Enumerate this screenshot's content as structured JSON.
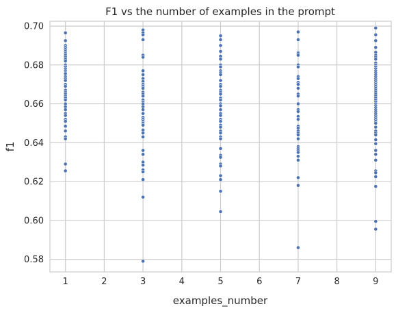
{
  "chart_data": {
    "type": "scatter",
    "title": "F1 vs the number of examples in the prompt",
    "xlabel": "examples_number",
    "ylabel": "f1",
    "xlim": [
      0.6,
      9.4
    ],
    "ylim": [
      0.5735,
      0.7025
    ],
    "xticks": [
      1,
      2,
      3,
      4,
      5,
      6,
      7,
      8,
      9
    ],
    "yticks": [
      0.58,
      0.6,
      0.62,
      0.64,
      0.66,
      0.68,
      0.7
    ],
    "ytick_labels": [
      "0.58",
      "0.60",
      "0.62",
      "0.64",
      "0.66",
      "0.68",
      "0.70"
    ],
    "grid": true,
    "color": "#4c72b0",
    "series": [
      {
        "x": 1,
        "values": [
          0.6965,
          0.6925,
          0.69,
          0.689,
          0.688,
          0.687,
          0.686,
          0.685,
          0.684,
          0.683,
          0.682,
          0.68,
          0.679,
          0.678,
          0.677,
          0.676,
          0.6755,
          0.674,
          0.673,
          0.672,
          0.67,
          0.669,
          0.667,
          0.666,
          0.665,
          0.664,
          0.663,
          0.662,
          0.66,
          0.6585,
          0.657,
          0.655,
          0.654,
          0.652,
          0.651,
          0.6485,
          0.646,
          0.643,
          0.642,
          0.629,
          0.6255
        ]
      },
      {
        "x": 3,
        "values": [
          0.698,
          0.6965,
          0.6955,
          0.693,
          0.685,
          0.684,
          0.677,
          0.675,
          0.673,
          0.6715,
          0.67,
          0.669,
          0.668,
          0.666,
          0.665,
          0.664,
          0.662,
          0.661,
          0.66,
          0.6585,
          0.657,
          0.655,
          0.653,
          0.652,
          0.651,
          0.65,
          0.649,
          0.6465,
          0.645,
          0.643,
          0.636,
          0.634,
          0.63,
          0.6285,
          0.626,
          0.625,
          0.621,
          0.612,
          0.579
        ]
      },
      {
        "x": 5,
        "values": [
          0.695,
          0.693,
          0.69,
          0.687,
          0.6845,
          0.683,
          0.68,
          0.679,
          0.677,
          0.676,
          0.675,
          0.672,
          0.67,
          0.669,
          0.667,
          0.666,
          0.665,
          0.663,
          0.662,
          0.66,
          0.659,
          0.657,
          0.655,
          0.654,
          0.652,
          0.651,
          0.649,
          0.648,
          0.646,
          0.645,
          0.643,
          0.642,
          0.637,
          0.6335,
          0.6325,
          0.629,
          0.628,
          0.623,
          0.621,
          0.615,
          0.6045
        ]
      },
      {
        "x": 7,
        "values": [
          0.697,
          0.693,
          0.6865,
          0.686,
          0.685,
          0.68,
          0.679,
          0.674,
          0.673,
          0.671,
          0.67,
          0.668,
          0.665,
          0.664,
          0.66,
          0.657,
          0.656,
          0.6535,
          0.652,
          0.6485,
          0.6475,
          0.646,
          0.645,
          0.644,
          0.642,
          0.638,
          0.637,
          0.636,
          0.635,
          0.633,
          0.631,
          0.622,
          0.618,
          0.586
        ]
      },
      {
        "x": 9,
        "values": [
          0.699,
          0.6955,
          0.6925,
          0.689,
          0.6865,
          0.685,
          0.684,
          0.683,
          0.681,
          0.68,
          0.679,
          0.678,
          0.677,
          0.676,
          0.675,
          0.674,
          0.673,
          0.672,
          0.671,
          0.67,
          0.669,
          0.668,
          0.667,
          0.666,
          0.665,
          0.664,
          0.663,
          0.662,
          0.661,
          0.66,
          0.659,
          0.658,
          0.657,
          0.656,
          0.655,
          0.654,
          0.653,
          0.652,
          0.651,
          0.65,
          0.648,
          0.646,
          0.645,
          0.644,
          0.6415,
          0.6395,
          0.636,
          0.634,
          0.631,
          0.6255,
          0.6245,
          0.6225,
          0.6175,
          0.5995,
          0.5955
        ]
      }
    ]
  }
}
